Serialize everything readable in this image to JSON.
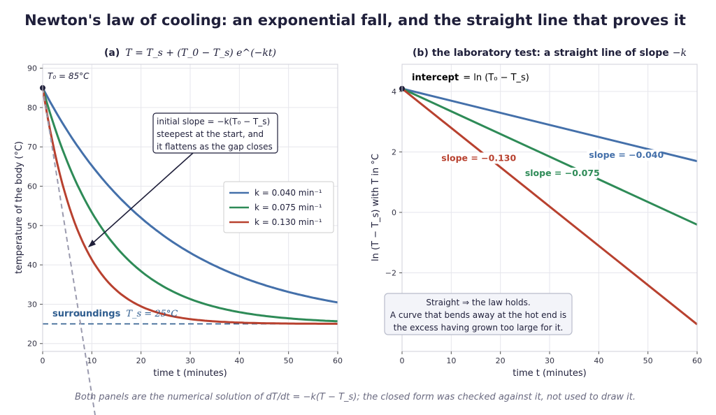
{
  "figure": {
    "suptitle": "Newton's law of cooling: an exponential fall, and the straight line that proves it",
    "footer": "Both panels are the numerical solution of dT/dt = −k(T − T_s); the closed form was checked against it, not used to draw it."
  },
  "chart_data": [
    {
      "type": "line",
      "panel": "a",
      "title_prefix": "(a)",
      "title_formula": "T = T_s + (T_0 − T_s) e^(−kt)",
      "xlabel": "time  t  (minutes)",
      "ylabel": "temperature of the body  (°C)",
      "xlim": [
        0,
        60
      ],
      "ylim": [
        18,
        91
      ],
      "xticks": [
        0,
        10,
        20,
        30,
        40,
        50,
        60
      ],
      "yticks": [
        20,
        30,
        40,
        50,
        60,
        70,
        80,
        90
      ],
      "grid": true,
      "legend_placement": "center-right",
      "T0": 85,
      "Ts": 25,
      "series": [
        {
          "name": "k = 0.040 min⁻¹",
          "k": 0.04,
          "color": "#4470aa"
        },
        {
          "name": "k = 0.075 min⁻¹",
          "k": 0.075,
          "color": "#2e8b57"
        },
        {
          "name": "k = 0.130 min⁻¹",
          "k": 0.13,
          "color": "#b8412f"
        }
      ],
      "tangent": {
        "k": 0.13,
        "x": [
          0,
          10.7
        ],
        "color": "#9a9aae"
      },
      "annotations": {
        "T0_label": "T₀ = 85°C",
        "surroundings_label": "surroundings",
        "surroundings_value": "T_s = 25°C",
        "slope_box": [
          "initial slope = −k(T₀ − T_s)",
          "steepest at the start, and",
          "it flattens as the gap closes"
        ]
      }
    },
    {
      "type": "line",
      "panel": "b",
      "title_prefix": "(b)  the laboratory test: a straight line of slope",
      "title_suffix": "−k",
      "xlabel": "time  t  (minutes)",
      "ylabel": "ln (T − T_s)   with T in °C",
      "xlim": [
        0,
        60
      ],
      "ylim": [
        -4.6,
        4.9
      ],
      "xticks": [
        0,
        10,
        20,
        30,
        40,
        50,
        60
      ],
      "yticks": [
        -2,
        0,
        2,
        4
      ],
      "grid": true,
      "intercept": 4.094,
      "series": [
        {
          "k": 0.04,
          "color": "#4470aa",
          "label": "slope = −0.040",
          "label_pos": [
            38,
            1.8
          ]
        },
        {
          "k": 0.075,
          "color": "#2e8b57",
          "label": "slope = −0.075",
          "label_pos": [
            25,
            1.2
          ]
        },
        {
          "k": 0.13,
          "color": "#b8412f",
          "label": "slope = −0.130",
          "label_pos": [
            8,
            1.7
          ]
        }
      ],
      "annotations": {
        "intercept_bold": "intercept",
        "intercept_value": "= ln (T₀ − T_s)",
        "note_lines": [
          "Straight ⇒ the law holds.",
          "A curve that bends away at the hot end is",
          "the excess having grown too large for it."
        ]
      }
    }
  ]
}
